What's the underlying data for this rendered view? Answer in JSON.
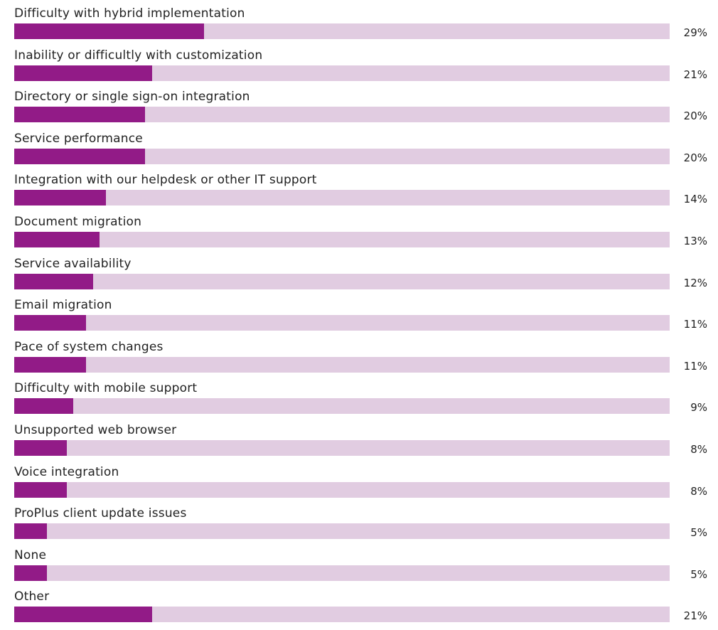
{
  "colors": {
    "bar_fill": "#921b87",
    "bar_track": "#e1cce1",
    "text": "#222222"
  },
  "chart_data": {
    "type": "bar",
    "orientation": "horizontal",
    "title": "",
    "xlabel": "",
    "ylabel": "",
    "xlim": [
      0,
      100
    ],
    "grid": false,
    "legend": "none",
    "unit": "%",
    "categories": [
      "Difficulty with hybrid implementation",
      "Inability or difficultly with customization",
      "Directory or single sign-on integration",
      "Service performance",
      "Integration with our helpdesk or other IT support",
      "Document migration",
      "Service availability",
      "Email migration",
      "Pace of system changes",
      "Difficulty with mobile support",
      "Unsupported web browser",
      "Voice integration",
      "ProPlus client update issues",
      "None",
      "Other"
    ],
    "values": [
      29,
      21,
      20,
      20,
      14,
      13,
      12,
      11,
      11,
      9,
      8,
      8,
      5,
      5,
      21
    ],
    "value_labels": [
      "29%",
      "21%",
      "20%",
      "20%",
      "14%",
      "13%",
      "12%",
      "11%",
      "11%",
      "9%",
      "8%",
      "8%",
      "5%",
      "5%",
      "21%"
    ]
  }
}
